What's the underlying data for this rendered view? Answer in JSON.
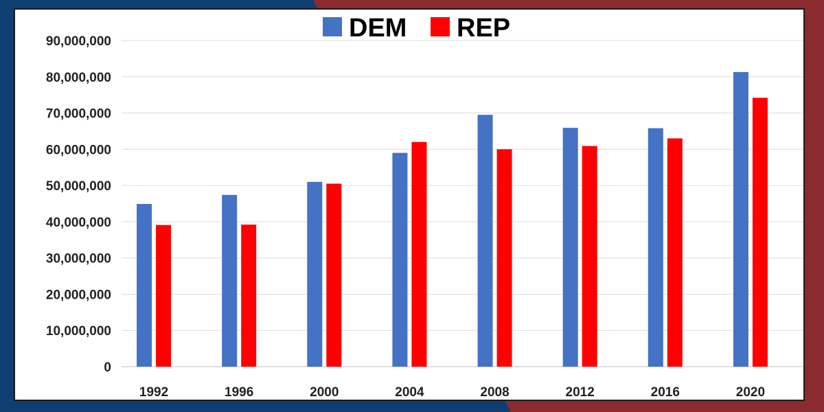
{
  "chart_data": {
    "type": "bar",
    "categories": [
      "1992",
      "1996",
      "2000",
      "2004",
      "2008",
      "2012",
      "2016",
      "2020"
    ],
    "series": [
      {
        "name": "DEM",
        "color": "#4472c4",
        "values": [
          44900000,
          47400000,
          51000000,
          59000000,
          69500000,
          65900000,
          65800000,
          81300000
        ]
      },
      {
        "name": "REP",
        "color": "#ff0000",
        "values": [
          39100000,
          39200000,
          50500000,
          62000000,
          60000000,
          60900000,
          63000000,
          74200000
        ]
      }
    ],
    "ylim": [
      0,
      90000000
    ],
    "yticks": [
      "0",
      "10,000,000",
      "20,000,000",
      "30,000,000",
      "40,000,000",
      "50,000,000",
      "60,000,000",
      "70,000,000",
      "80,000,000",
      "90,000,000"
    ],
    "grid": true,
    "legend": "top-center",
    "title": "",
    "xlabel": "",
    "ylabel": ""
  },
  "colors": {
    "frame_blue": "#0f3e72",
    "frame_red": "#8b2b2f"
  }
}
